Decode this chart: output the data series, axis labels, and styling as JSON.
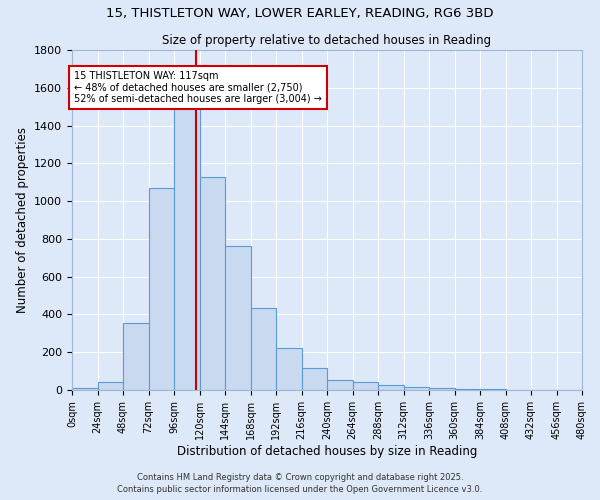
{
  "title_line1": "15, THISTLETON WAY, LOWER EARLEY, READING, RG6 3BD",
  "title_line2": "Size of property relative to detached houses in Reading",
  "xlabel": "Distribution of detached houses by size in Reading",
  "ylabel": "Number of detached properties",
  "bar_color": "#c9d9f0",
  "bar_edge_color": "#5b9bd5",
  "background_color": "#dde8f8",
  "grid_color": "#ffffff",
  "fig_bg_color": "#dde8f8",
  "bin_edges": [
    0,
    24,
    48,
    72,
    96,
    120,
    144,
    168,
    192,
    216,
    240,
    264,
    288,
    312,
    336,
    360,
    384,
    408,
    432,
    456,
    480
  ],
  "counts": [
    10,
    40,
    355,
    1070,
    1500,
    1130,
    760,
    435,
    225,
    115,
    55,
    45,
    25,
    15,
    10,
    5,
    3,
    2,
    1,
    1
  ],
  "vline_x": 117,
  "vline_color": "#cc0000",
  "annotation_text": "15 THISTLETON WAY: 117sqm\n← 48% of detached houses are smaller (2,750)\n52% of semi-detached houses are larger (3,004) →",
  "annotation_box_color": "#ffffff",
  "annotation_box_edge": "#cc0000",
  "ylim": [
    0,
    1800
  ],
  "yticks": [
    0,
    200,
    400,
    600,
    800,
    1000,
    1200,
    1400,
    1600,
    1800
  ],
  "footnote1": "Contains HM Land Registry data © Crown copyright and database right 2025.",
  "footnote2": "Contains public sector information licensed under the Open Government Licence v3.0."
}
